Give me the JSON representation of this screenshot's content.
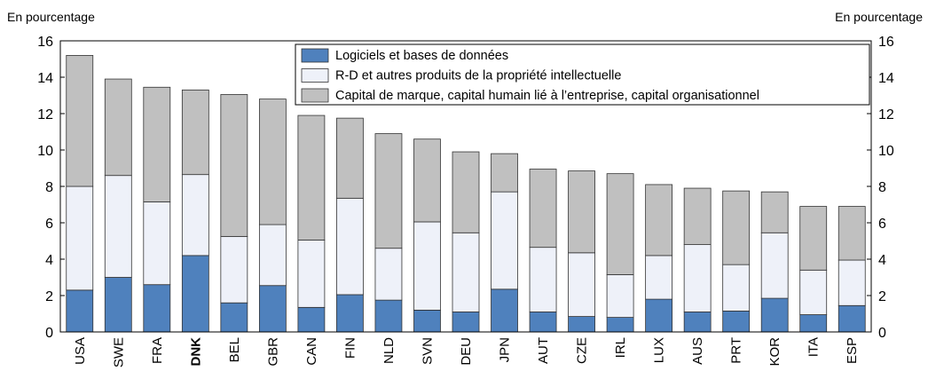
{
  "chart_data": {
    "type": "stacked_bar",
    "ylabel": "En pourcentage",
    "y2label": "En pourcentage",
    "categories": [
      "USA",
      "SWE",
      "FRA",
      "DNK",
      "BEL",
      "GBR",
      "CAN",
      "FIN",
      "NLD",
      "SVN",
      "DEU",
      "JPN",
      "AUT",
      "CZE",
      "IRL",
      "LUX",
      "AUS",
      "PRT",
      "KOR",
      "ITA",
      "ESP"
    ],
    "bold_category_indices": [
      3
    ],
    "series": [
      {
        "name": "Logiciels et bases de données",
        "color": "#4f81bd",
        "values": [
          2.3,
          3.0,
          2.6,
          4.2,
          1.6,
          2.55,
          1.35,
          2.05,
          1.75,
          1.2,
          1.1,
          2.35,
          1.1,
          0.85,
          0.8,
          1.8,
          1.1,
          1.15,
          1.85,
          0.95,
          1.45
        ]
      },
      {
        "name": "R-D et autres produits de la propriété intellectuelle",
        "color": "#eef1f9",
        "values": [
          5.7,
          5.6,
          4.55,
          4.45,
          3.65,
          3.35,
          3.7,
          5.3,
          2.85,
          4.85,
          4.35,
          5.35,
          3.55,
          3.5,
          2.35,
          2.4,
          3.7,
          2.55,
          3.6,
          2.45,
          2.5
        ]
      },
      {
        "name": "Capital de marque, capital humain lié à l’entreprise, capital organisationnel",
        "color": "#c0c0c0",
        "values": [
          7.2,
          5.3,
          6.3,
          4.65,
          7.8,
          6.9,
          6.85,
          4.4,
          6.3,
          4.55,
          4.45,
          2.1,
          4.3,
          4.5,
          5.55,
          3.9,
          3.1,
          4.05,
          2.25,
          3.5,
          2.95
        ]
      }
    ],
    "ylim": [
      0,
      16
    ],
    "yticks": [
      0,
      2,
      4,
      6,
      8,
      10,
      12,
      14,
      16
    ],
    "y2lim": [
      0,
      16
    ],
    "y2ticks": [
      0,
      2,
      4,
      6,
      8,
      10,
      12,
      14,
      16
    ]
  }
}
